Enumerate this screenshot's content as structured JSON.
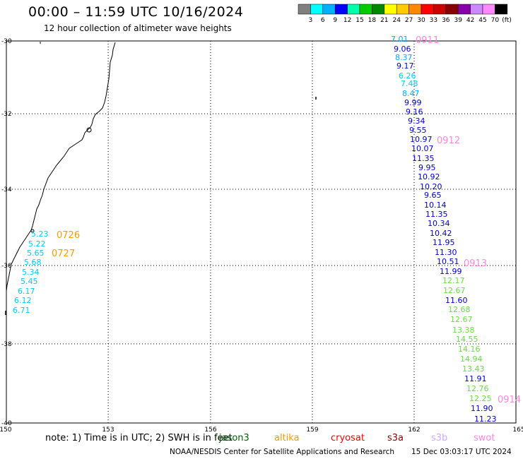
{
  "title": "00:00 – 11:59 UTC 10/16/2024",
  "subtitle": "12 hour collection of altimeter wave heights",
  "colorbar": {
    "colors": [
      "#808080",
      "#00ffff",
      "#00b0ff",
      "#0000ff",
      "#00ffaa",
      "#00cc00",
      "#008800",
      "#ffff00",
      "#ffcc00",
      "#ff8800",
      "#ff0000",
      "#cc0000",
      "#880000",
      "#8800aa",
      "#cc88ff",
      "#ff88ff",
      "#000000"
    ],
    "labels": [
      "3",
      "6",
      "9",
      "12",
      "15",
      "18",
      "21",
      "24",
      "27",
      "30",
      "33",
      "36",
      "39",
      "42",
      "45",
      "70"
    ],
    "unit": "(ft)"
  },
  "axes": {
    "lon_ticks": [
      "150",
      "153",
      "156",
      "159",
      "162",
      "165"
    ],
    "lat_ticks": [
      "-30",
      "-32",
      "-34",
      "-36",
      "-38",
      "-40"
    ]
  },
  "passes": [
    {
      "label": "0726",
      "color": "#ff9900"
    },
    {
      "label": "0727",
      "color": "#ff9900"
    },
    {
      "label": "0911",
      "color": "#ff88dd"
    },
    {
      "label": "0912",
      "color": "#ff88dd"
    },
    {
      "label": "0913",
      "color": "#ff88dd"
    },
    {
      "label": "0914",
      "color": "#ff88dd"
    }
  ],
  "observations_coastal": [
    {
      "v": "5.23",
      "c": "#00ccff"
    },
    {
      "v": "5.22",
      "c": "#00ccff"
    },
    {
      "v": "5.65",
      "c": "#00ccff"
    },
    {
      "v": "5.68",
      "c": "#00ccff"
    },
    {
      "v": "5.34",
      "c": "#00ccff"
    },
    {
      "v": "5.45",
      "c": "#00ccff"
    },
    {
      "v": "6.17",
      "c": "#00ccff"
    },
    {
      "v": "6.12",
      "c": "#00ccff"
    },
    {
      "v": "6.71",
      "c": "#00ccff"
    }
  ],
  "observations_offshore": [
    {
      "v": "7.01",
      "c": "#00aaff"
    },
    {
      "v": "9.06",
      "c": "#0000cc"
    },
    {
      "v": "8.37",
      "c": "#00aaff"
    },
    {
      "v": "9.17",
      "c": "#0000cc"
    },
    {
      "v": "6.26",
      "c": "#00ccff"
    },
    {
      "v": "7.48",
      "c": "#00ccff"
    },
    {
      "v": "8.47",
      "c": "#00aaff"
    },
    {
      "v": "9.99",
      "c": "#0000cc"
    },
    {
      "v": "9.16",
      "c": "#0000cc"
    },
    {
      "v": "9.34",
      "c": "#0000cc"
    },
    {
      "v": "9.55",
      "c": "#0000cc"
    },
    {
      "v": "10.97",
      "c": "#0000cc"
    },
    {
      "v": "10.07",
      "c": "#0000cc"
    },
    {
      "v": "11.35",
      "c": "#0000cc"
    },
    {
      "v": "9.95",
      "c": "#0000cc"
    },
    {
      "v": "10.92",
      "c": "#0000cc"
    },
    {
      "v": "10.20",
      "c": "#0000cc"
    },
    {
      "v": "9.65",
      "c": "#0000cc"
    },
    {
      "v": "10.14",
      "c": "#0000cc"
    },
    {
      "v": "11.35",
      "c": "#0000cc"
    },
    {
      "v": "10.34",
      "c": "#0000cc"
    },
    {
      "v": "10.42",
      "c": "#0000cc"
    },
    {
      "v": "11.95",
      "c": "#0000cc"
    },
    {
      "v": "11.30",
      "c": "#0000cc"
    },
    {
      "v": "10.51",
      "c": "#0000cc"
    },
    {
      "v": "11.99",
      "c": "#0000cc"
    },
    {
      "v": "12.17",
      "c": "#66dd44"
    },
    {
      "v": "12.67",
      "c": "#66dd44"
    },
    {
      "v": "11.60",
      "c": "#0000cc"
    },
    {
      "v": "12.68",
      "c": "#66dd44"
    },
    {
      "v": "12.67",
      "c": "#66dd44"
    },
    {
      "v": "13.38",
      "c": "#66dd44"
    },
    {
      "v": "14.55",
      "c": "#66dd44"
    },
    {
      "v": "14.16",
      "c": "#66dd44"
    },
    {
      "v": "14.94",
      "c": "#66dd44"
    },
    {
      "v": "13.43",
      "c": "#66dd44"
    },
    {
      "v": "11.91",
      "c": "#0000cc"
    },
    {
      "v": "12.76",
      "c": "#66dd44"
    },
    {
      "v": "12.25",
      "c": "#66dd44"
    },
    {
      "v": "11.90",
      "c": "#0000cc"
    },
    {
      "v": "11.23",
      "c": "#0000cc"
    }
  ],
  "footer": {
    "note": "note:  1) Time is in UTC;  2) SWH is in feet",
    "satellites": [
      {
        "name": "jason3",
        "color": "#006600"
      },
      {
        "name": "altika",
        "color": "#ff9900"
      },
      {
        "name": "cryosat",
        "color": "#ff0000"
      },
      {
        "name": "s3a",
        "color": "#880000"
      },
      {
        "name": "s3b",
        "color": "#ccaaff"
      },
      {
        "name": "swot",
        "color": "#ff88dd"
      }
    ],
    "credit": "NOAA/NESDIS Center for Satellite Applications and Research",
    "timestamp": "15 Dec 03:03:17 UTC 2024"
  }
}
